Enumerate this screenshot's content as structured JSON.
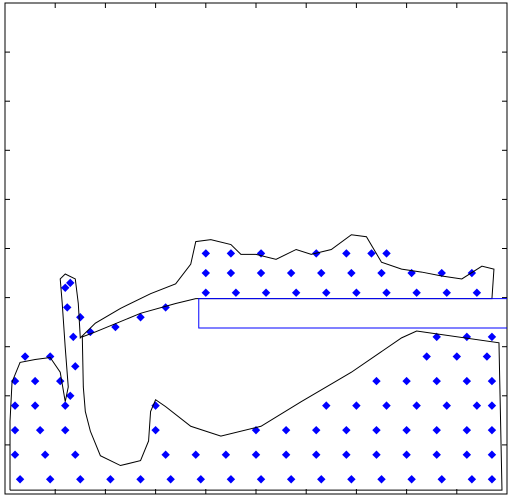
{
  "chart_data": {
    "type": "scatter",
    "xlim": [
      0,
      500
    ],
    "ylim": [
      0,
      500
    ],
    "xticks": [
      0,
      50,
      100,
      150,
      200,
      250,
      300,
      350,
      400,
      450,
      500
    ],
    "yticks": [
      0,
      50,
      100,
      150,
      200,
      250,
      300,
      350,
      400,
      450,
      500
    ],
    "series": [
      {
        "style": "marker",
        "marker": "diamond",
        "color": "#0000ff",
        "x": [
          15,
          45,
          75,
          105,
          135,
          165,
          195,
          225,
          255,
          285,
          315,
          345,
          375,
          405,
          435,
          465,
          485,
          10,
          40,
          70,
          160,
          190,
          220,
          250,
          280,
          310,
          340,
          370,
          400,
          430,
          460,
          485,
          10,
          35,
          60,
          150,
          250,
          280,
          310,
          340,
          370,
          400,
          430,
          460,
          485,
          10,
          30,
          60,
          150,
          320,
          350,
          380,
          410,
          440,
          470,
          485,
          10,
          30,
          55,
          370,
          400,
          430,
          460,
          485,
          20,
          45,
          420,
          450,
          480,
          430,
          460,
          485,
          200,
          230,
          260,
          290,
          320,
          350,
          380,
          410,
          440,
          470,
          200,
          225,
          255,
          285,
          315,
          345,
          375,
          405,
          435,
          465,
          200,
          225,
          255,
          310,
          340,
          365,
          380,
          65,
          70,
          68,
          62,
          65,
          75,
          85,
          110,
          135,
          160,
          60
        ],
        "y": [
          15,
          15,
          15,
          15,
          15,
          15,
          15,
          15,
          15,
          15,
          15,
          15,
          15,
          15,
          15,
          15,
          15,
          40,
          40,
          40,
          40,
          40,
          40,
          40,
          40,
          40,
          40,
          40,
          40,
          40,
          40,
          40,
          65,
          65,
          65,
          65,
          65,
          65,
          65,
          65,
          65,
          65,
          65,
          65,
          65,
          90,
          90,
          90,
          90,
          90,
          90,
          90,
          90,
          90,
          90,
          90,
          115,
          115,
          115,
          115,
          115,
          115,
          115,
          115,
          140,
          140,
          140,
          140,
          140,
          160,
          160,
          160,
          205,
          205,
          205,
          205,
          205,
          205,
          205,
          205,
          205,
          205,
          225,
          225,
          225,
          225,
          225,
          225,
          225,
          225,
          225,
          225,
          245,
          245,
          245,
          245,
          245,
          245,
          245,
          100,
          130,
          160,
          190,
          215,
          180,
          165,
          170,
          180,
          190,
          210
        ]
      },
      {
        "style": "line",
        "color": "#000000",
        "x": [
          5,
          495,
          492,
          410,
          395,
          345,
          295,
          255,
          215,
          185,
          160,
          150,
          145,
          143,
          135,
          115,
          95,
          85,
          80,
          78,
          77,
          90,
          135,
          170,
          190,
          485,
          487,
          475,
          455,
          435,
          415,
          395,
          375,
          360,
          345,
          325,
          305,
          290,
          270,
          250,
          235,
          225,
          205,
          190,
          185,
          170,
          145,
          115,
          90,
          75,
          73,
          70,
          60,
          55,
          57,
          60,
          63,
          60,
          55,
          45,
          30,
          15,
          7,
          5,
          5
        ],
        "y": [
          4,
          4,
          154,
          166,
          159,
          124,
          94,
          69,
          59,
          69,
          89,
          96,
          84,
          54,
          34,
          29,
          39,
          64,
          84,
          109,
          160,
          165,
          184,
          194,
          199,
          199,
          229,
          232,
          219,
          222,
          226,
          229,
          236,
          262,
          264,
          249,
          244,
          249,
          239,
          244,
          244,
          254,
          259,
          257,
          234,
          214,
          204,
          189,
          174,
          159,
          194,
          219,
          224,
          219,
          194,
          149,
          109,
          94,
          124,
          139,
          137,
          134,
          114,
          74,
          4
        ]
      },
      {
        "style": "line",
        "color": "#0000ff",
        "x": [
          500,
          193,
          193,
          500
        ],
        "y": [
          199,
          199,
          169,
          169
        ]
      }
    ]
  }
}
